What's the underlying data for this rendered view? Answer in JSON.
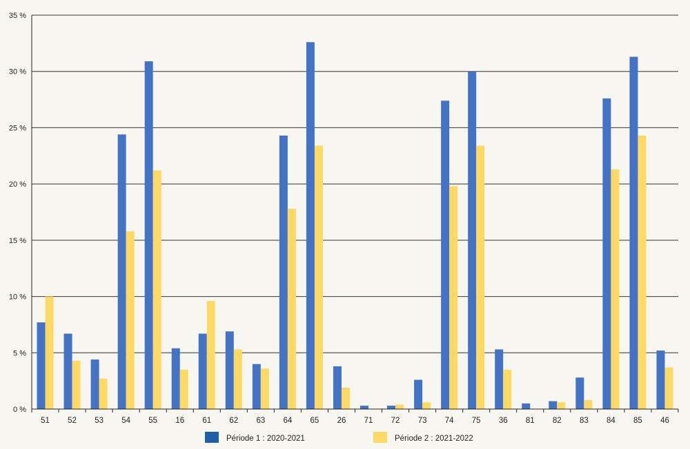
{
  "chart_data": {
    "type": "bar",
    "categories": [
      "51",
      "52",
      "53",
      "54",
      "55",
      "16",
      "61",
      "62",
      "63",
      "64",
      "65",
      "26",
      "71",
      "72",
      "73",
      "74",
      "75",
      "36",
      "81",
      "82",
      "83",
      "84",
      "85",
      "46"
    ],
    "series": [
      {
        "name": "Période 1 : 2020-2021",
        "color": "#4472c4",
        "values": [
          7.7,
          6.7,
          4.4,
          24.4,
          30.9,
          5.4,
          6.7,
          6.9,
          4.0,
          24.3,
          32.6,
          3.8,
          0.3,
          0.3,
          2.6,
          27.4,
          30.0,
          5.3,
          0.5,
          0.7,
          2.8,
          27.6,
          31.3,
          5.2
        ]
      },
      {
        "name": "Période 2 : 2021-2022",
        "color": "#ffd966",
        "values": [
          10.0,
          4.3,
          2.7,
          15.8,
          21.2,
          3.5,
          9.6,
          5.3,
          3.6,
          17.8,
          23.4,
          1.9,
          0.0,
          0.4,
          0.6,
          19.8,
          23.4,
          3.5,
          0.0,
          0.6,
          0.8,
          21.3,
          24.3,
          3.7
        ]
      }
    ],
    "y_ticks": [
      "0 %",
      "5 %",
      "10 %",
      "15 %",
      "20 %",
      "25 %",
      "30 %",
      "35 %"
    ],
    "ylim": [
      0,
      35
    ],
    "grid": true,
    "legend_position": "bottom",
    "legend_swatch_color_1": "#1f5fa8"
  }
}
